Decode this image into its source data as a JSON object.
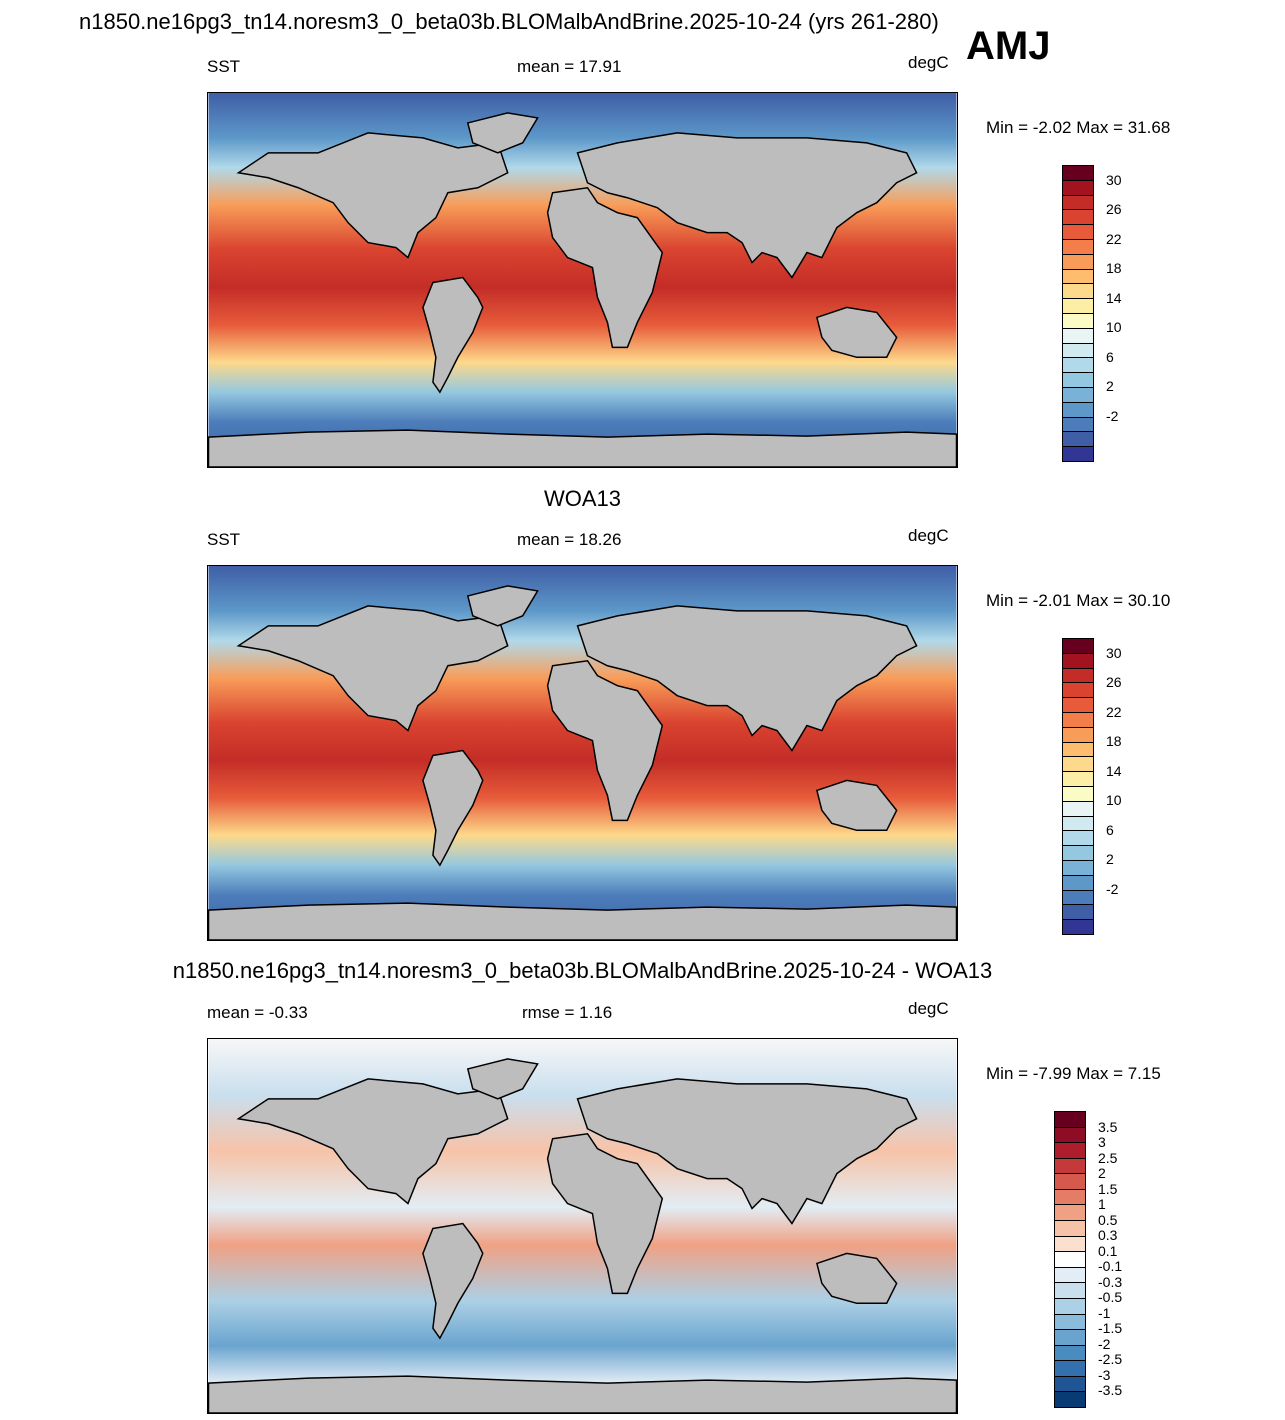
{
  "main_title": "n1850.ne16pg3_tn14.noresm3_0_beta03b.BLOMalbAndBrine.2025-10-24 (yrs 261-280)",
  "season": "AMJ",
  "panels": [
    {
      "title": "",
      "left_label": "SST",
      "center_label": "mean =  17.91",
      "units": "degC",
      "minmax": "Min =  -2.02 Max =  31.68",
      "scale": "sst"
    },
    {
      "title": "WOA13",
      "left_label": "SST",
      "center_label": "mean =  18.26",
      "units": "degC",
      "minmax": "Min =  -2.01 Max =  30.10",
      "scale": "sst"
    },
    {
      "title": "n1850.ne16pg3_tn14.noresm3_0_beta03b.BLOMalbAndBrine.2025-10-24 - WOA13",
      "left_label": "mean =  -0.33",
      "center_label": "rmse =   1.16",
      "units": "degC",
      "minmax": "Min =  -7.99 Max =   7.15",
      "scale": "diff"
    }
  ],
  "colorbars": {
    "sst": {
      "labels": [
        "30",
        "26",
        "22",
        "18",
        "14",
        "10",
        "6",
        "2",
        "-2"
      ],
      "colors": [
        "#67001f",
        "#a3131f",
        "#c42d27",
        "#d9432f",
        "#e75b3a",
        "#f47e49",
        "#f89d59",
        "#fdbc6e",
        "#fdd98b",
        "#fdeea5",
        "#fbfbc5",
        "#e9f5f4",
        "#d0eaf0",
        "#b1d9e9",
        "#94c8e0",
        "#79b2d6",
        "#5d98c9",
        "#4c7dba",
        "#3f5ea6",
        "#313695"
      ]
    },
    "diff": {
      "labels": [
        "3.5",
        "3",
        "2.5",
        "2",
        "1.5",
        "1",
        "0.5",
        "0.3",
        "0.1",
        "-0.1",
        "-0.3",
        "-0.5",
        "-1",
        "-1.5",
        "-2",
        "-2.5",
        "-3",
        "-3.5"
      ],
      "colors": [
        "#67001f",
        "#8e0c24",
        "#ad1d2b",
        "#c43a3a",
        "#d6594e",
        "#e47c66",
        "#f0a184",
        "#f7c3a8",
        "#fbe0d0",
        "#ffffff",
        "#e2edf5",
        "#c9dfee",
        "#acd0e5",
        "#8cbcdb",
        "#6aa4ce",
        "#4b8cc0",
        "#3370ad",
        "#1f5595",
        "#083a73"
      ]
    }
  },
  "map_colors": {
    "land": "#bdbdbd",
    "coast": "#000000"
  }
}
